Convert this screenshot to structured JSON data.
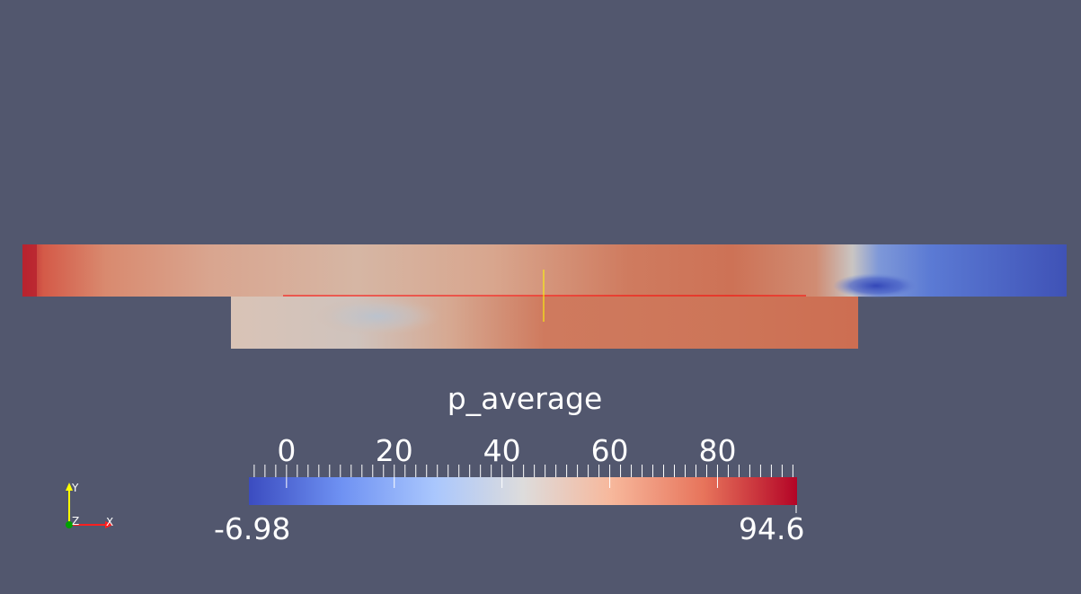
{
  "colorbar": {
    "title": "p_average",
    "range_min": "-6.98",
    "range_max": "94.6",
    "min_value": -6.98,
    "max_value": 94.6,
    "major_ticks": [
      "0",
      "20",
      "40",
      "60",
      "80"
    ],
    "major_tick_values": [
      0,
      20,
      40,
      60,
      80
    ],
    "colormap": "cool-to-warm",
    "colormap_colors": [
      "#3b4cc0",
      "#6f92f3",
      "#aac7fd",
      "#dddcdc",
      "#f7b89c",
      "#e7745b",
      "#b40426"
    ]
  },
  "orientation_axes": {
    "x_label": "X",
    "y_label": "Y",
    "z_label": "Z",
    "x_color": "#ff2020",
    "y_color": "#ffff00",
    "z_color": "#00a000"
  },
  "probe_line": {
    "color": "#ff0000",
    "handle_color": "#ffff00"
  },
  "background_color": "#52576e"
}
